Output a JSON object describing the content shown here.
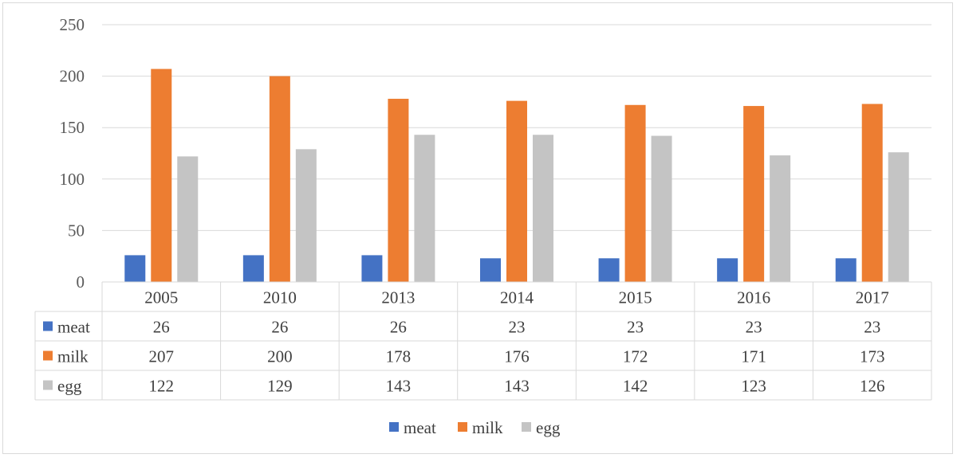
{
  "chart_data": {
    "type": "bar",
    "categories": [
      "2005",
      "2010",
      "2013",
      "2014",
      "2015",
      "2016",
      "2017"
    ],
    "series": [
      {
        "name": "meat",
        "color": "#4472c4",
        "values": [
          26,
          26,
          26,
          23,
          23,
          23,
          23
        ]
      },
      {
        "name": "milk",
        "color": "#ed7d31",
        "values": [
          207,
          200,
          178,
          176,
          172,
          171,
          173
        ]
      },
      {
        "name": "egg",
        "color": "#c4c4c4",
        "values": [
          122,
          129,
          143,
          143,
          142,
          123,
          126
        ]
      }
    ],
    "title": "",
    "xlabel": "",
    "ylabel": "",
    "ylim": [
      0,
      250
    ],
    "yticks": [
      "0",
      "50",
      "100",
      "150",
      "200",
      "250"
    ],
    "grid": true,
    "legend_position": "bottom",
    "data_table": true
  }
}
